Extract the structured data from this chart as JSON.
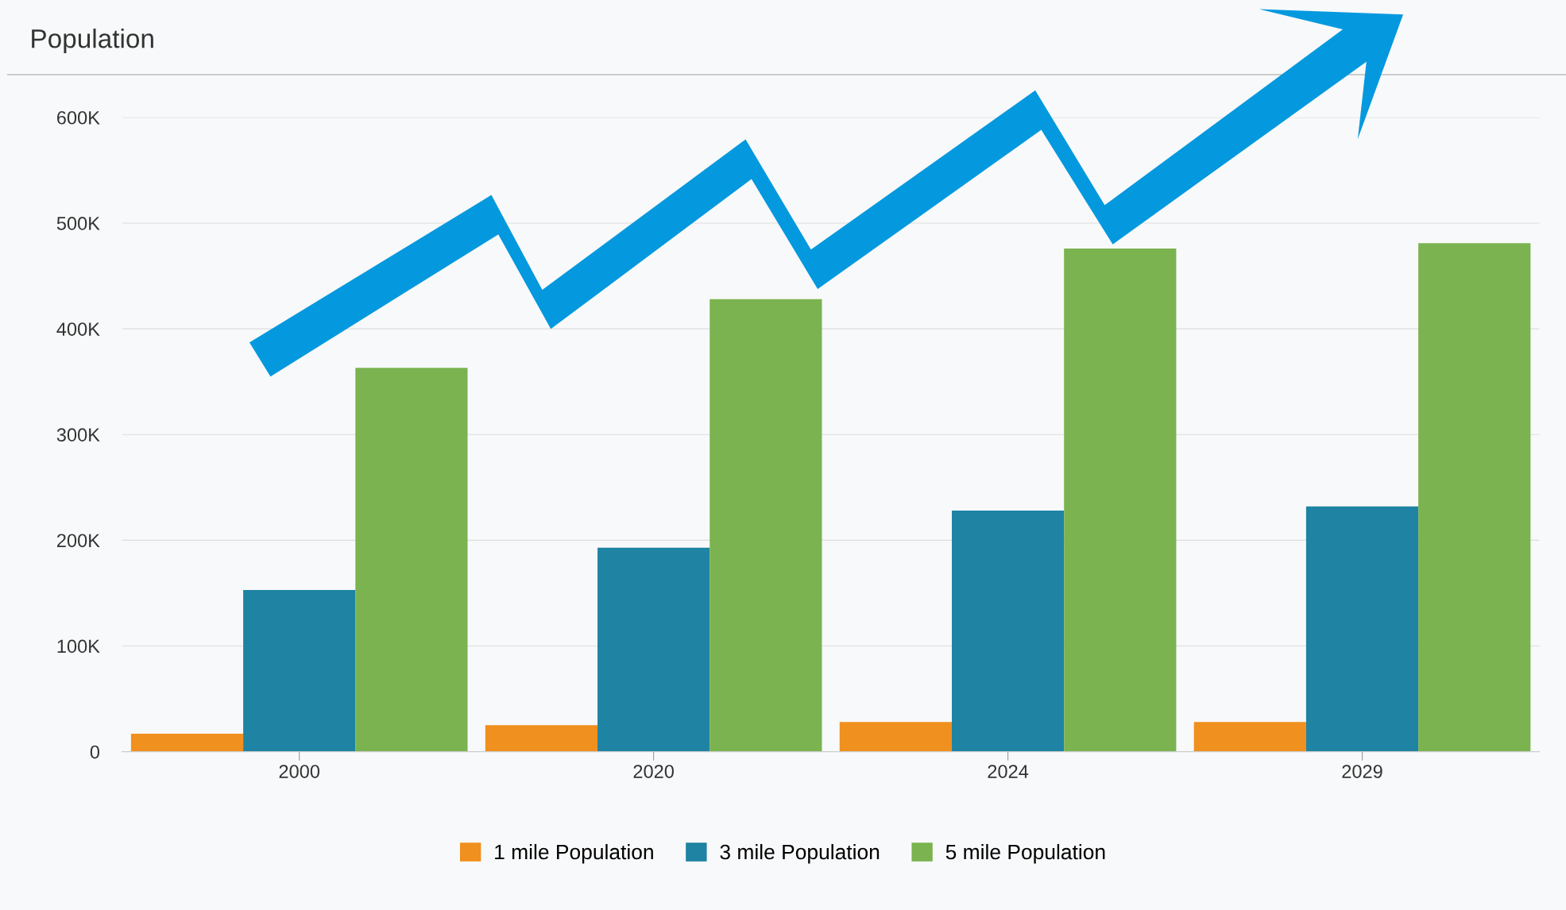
{
  "chart_data": {
    "type": "bar",
    "title": "Population",
    "categories": [
      "2000",
      "2020",
      "2024",
      "2029"
    ],
    "series": [
      {
        "name": "1 mile Population",
        "color": "#f0901e",
        "values": [
          17000,
          25000,
          28000,
          28000
        ]
      },
      {
        "name": "3 mile Population",
        "color": "#1f83a3",
        "values": [
          153000,
          193000,
          228000,
          232000
        ]
      },
      {
        "name": "5 mile Population",
        "color": "#7ab350",
        "values": [
          363000,
          428000,
          476000,
          481000
        ]
      }
    ],
    "ylim": [
      0,
      600000
    ],
    "yticks": [
      {
        "value": 0,
        "label": "0"
      },
      {
        "value": 100000,
        "label": "100K"
      },
      {
        "value": 200000,
        "label": "200K"
      },
      {
        "value": 300000,
        "label": "300K"
      },
      {
        "value": 400000,
        "label": "400K"
      },
      {
        "value": 500000,
        "label": "500K"
      },
      {
        "value": 600000,
        "label": "600K"
      }
    ],
    "grid": "y",
    "legend": "bottom"
  }
}
